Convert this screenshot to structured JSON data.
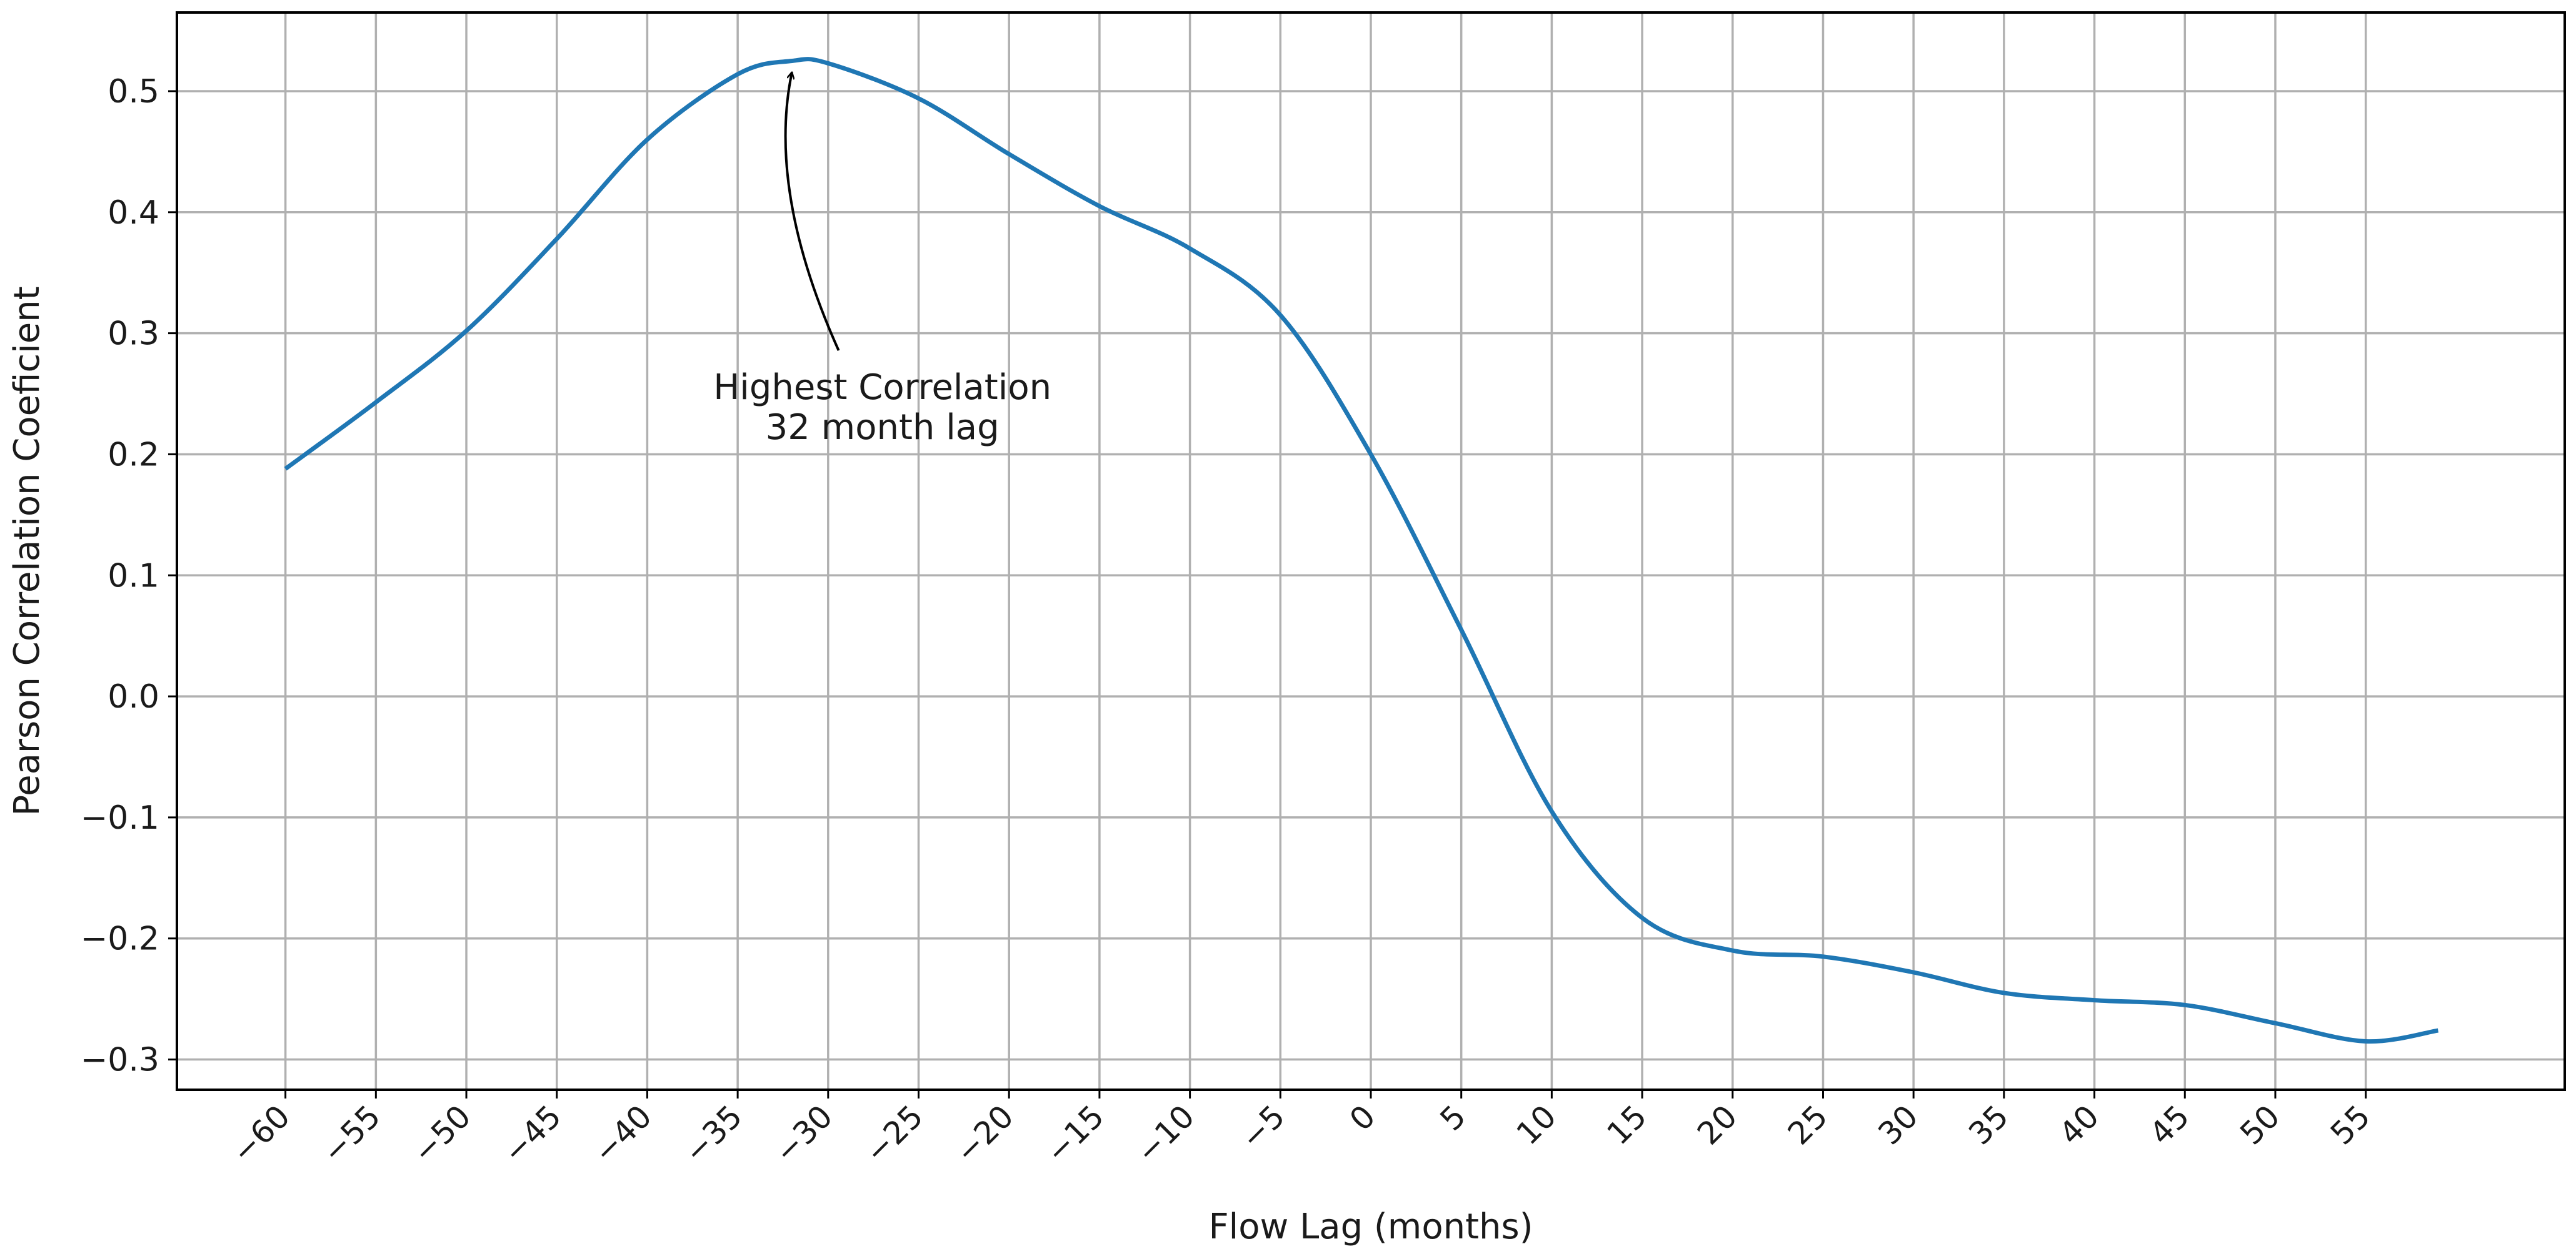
{
  "chart_data": {
    "type": "line",
    "title": "",
    "xlabel": "Flow Lag (months)",
    "ylabel": "Pearson Correlation Coeficient",
    "xlim": [
      -66,
      66
    ],
    "ylim": [
      -0.325,
      0.565
    ],
    "xticks": [
      -60,
      -55,
      -50,
      -45,
      -40,
      -35,
      -30,
      -25,
      -20,
      -15,
      -10,
      -5,
      0,
      5,
      10,
      15,
      20,
      25,
      30,
      35,
      40,
      45,
      50,
      55
    ],
    "yticks": [
      0.5,
      0.4,
      0.3,
      0.2,
      0.1,
      0.0,
      -0.1,
      -0.2,
      -0.3
    ],
    "grid": true,
    "line_color": "#1f77b4",
    "series": [
      {
        "x": [
          -60,
          -55,
          -50,
          -45,
          -40,
          -35,
          -32,
          -30,
          -25,
          -20,
          -15,
          -10,
          -5,
          0,
          5,
          10,
          15,
          20,
          25,
          30,
          35,
          40,
          45,
          50,
          55,
          59
        ],
        "values": [
          0.188,
          0.243,
          0.302,
          0.378,
          0.46,
          0.514,
          0.525,
          0.523,
          0.494,
          0.448,
          0.405,
          0.37,
          0.315,
          0.2,
          0.055,
          -0.095,
          -0.183,
          -0.21,
          -0.215,
          -0.228,
          -0.245,
          -0.251,
          -0.255,
          -0.27,
          -0.285,
          -0.276
        ]
      }
    ],
    "annotations": [
      {
        "text_lines": [
          "Highest Correlation",
          "32 month lag"
        ],
        "point": [
          -32,
          0.525
        ],
        "text_at": [
          -27,
          0.26
        ]
      }
    ]
  }
}
